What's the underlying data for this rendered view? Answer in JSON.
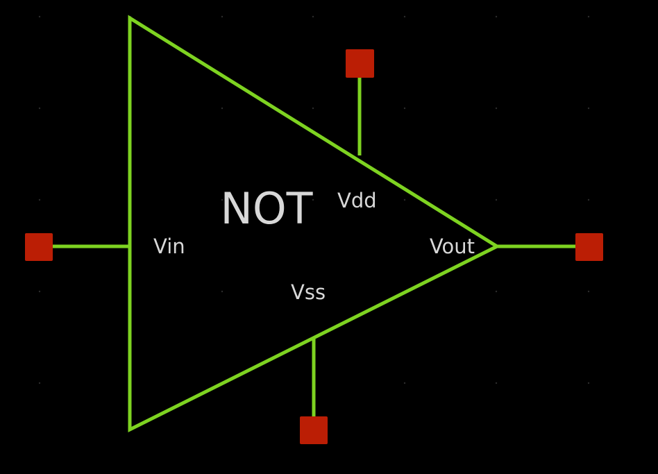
{
  "diagram": {
    "component_label": "NOT",
    "pins": {
      "vin": "Vin",
      "vout": "Vout",
      "vdd": "Vdd",
      "vss": "Vss"
    },
    "colors": {
      "background": "#000000",
      "wire": "#7ed321",
      "terminal": "#bb1e05",
      "text": "#d8d8d8"
    }
  }
}
